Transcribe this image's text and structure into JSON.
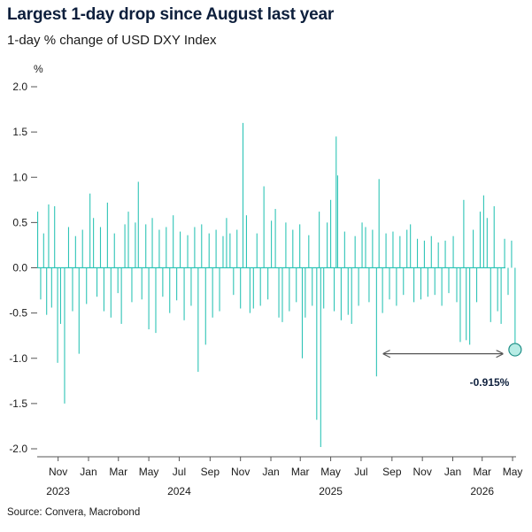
{
  "title": "Largest 1-day drop since August last year",
  "subtitle": "1-day % change of USD DXY Index",
  "source": "Source: Convera, Macrobond",
  "chart_data": {
    "type": "bar",
    "title": "Largest 1-day drop since August last year",
    "subtitle": "1-day % change of USD DXY Index",
    "ylabel": "%",
    "ylim": [
      -2.1,
      2.1
    ],
    "y_ticks": [
      2.0,
      1.5,
      1.0,
      0.5,
      0.0,
      -0.5,
      -1.0,
      -1.5,
      -2.0
    ],
    "y_tick_labels": [
      "2.0",
      "1.5",
      "1.0",
      "0.5",
      "0.0",
      "-0.5",
      "-1.0",
      "-1.5",
      "-2.0"
    ],
    "x_range": [
      "2023-09-20",
      "2026-05-08"
    ],
    "x_month_ticks": [
      {
        "label": "Nov",
        "date": "2023-11-01"
      },
      {
        "label": "Jan",
        "date": "2024-01-01"
      },
      {
        "label": "Mar",
        "date": "2024-03-01"
      },
      {
        "label": "May",
        "date": "2024-05-01"
      },
      {
        "label": "Jul",
        "date": "2024-07-01"
      },
      {
        "label": "Sep",
        "date": "2024-09-01"
      },
      {
        "label": "Nov",
        "date": "2024-11-01"
      },
      {
        "label": "Jan",
        "date": "2025-01-01"
      },
      {
        "label": "Mar",
        "date": "2025-03-01"
      },
      {
        "label": "May",
        "date": "2025-05-01"
      },
      {
        "label": "Jul",
        "date": "2025-07-01"
      },
      {
        "label": "Sep",
        "date": "2025-09-01"
      },
      {
        "label": "Nov",
        "date": "2025-11-01"
      },
      {
        "label": "Jan",
        "date": "2026-01-01"
      },
      {
        "label": "Mar",
        "date": "2026-03-01"
      },
      {
        "label": "May",
        "date": "2026-05-01"
      }
    ],
    "x_year_labels": [
      {
        "label": "2023",
        "date": "2023-11-01"
      },
      {
        "label": "2024",
        "date": "2024-07-01"
      },
      {
        "label": "2025",
        "date": "2025-05-01"
      },
      {
        "label": "2026",
        "date": "2026-03-01"
      }
    ],
    "series": [
      {
        "color": "#2ec4b6",
        "points": [
          {
            "x": "2023-09-21",
            "y": 0.62
          },
          {
            "x": "2023-09-27",
            "y": -0.35
          },
          {
            "x": "2023-10-03",
            "y": 0.38
          },
          {
            "x": "2023-10-09",
            "y": -0.52
          },
          {
            "x": "2023-10-13",
            "y": 0.7
          },
          {
            "x": "2023-10-19",
            "y": -0.44
          },
          {
            "x": "2023-10-25",
            "y": 0.68
          },
          {
            "x": "2023-10-31",
            "y": -1.05
          },
          {
            "x": "2023-11-06",
            "y": -0.62
          },
          {
            "x": "2023-11-14",
            "y": -1.5
          },
          {
            "x": "2023-11-22",
            "y": 0.45
          },
          {
            "x": "2023-11-30",
            "y": -0.48
          },
          {
            "x": "2023-12-06",
            "y": 0.35
          },
          {
            "x": "2023-12-13",
            "y": -0.95
          },
          {
            "x": "2023-12-20",
            "y": 0.42
          },
          {
            "x": "2023-12-28",
            "y": -0.4
          },
          {
            "x": "2024-01-04",
            "y": 0.82
          },
          {
            "x": "2024-01-11",
            "y": 0.55
          },
          {
            "x": "2024-01-18",
            "y": -0.32
          },
          {
            "x": "2024-01-25",
            "y": 0.45
          },
          {
            "x": "2024-02-01",
            "y": -0.48
          },
          {
            "x": "2024-02-08",
            "y": 0.72
          },
          {
            "x": "2024-02-15",
            "y": -0.55
          },
          {
            "x": "2024-02-22",
            "y": 0.38
          },
          {
            "x": "2024-02-29",
            "y": -0.28
          },
          {
            "x": "2024-03-07",
            "y": -0.62
          },
          {
            "x": "2024-03-14",
            "y": 0.48
          },
          {
            "x": "2024-03-21",
            "y": 0.62
          },
          {
            "x": "2024-03-28",
            "y": -0.38
          },
          {
            "x": "2024-04-04",
            "y": 0.5
          },
          {
            "x": "2024-04-10",
            "y": 0.95
          },
          {
            "x": "2024-04-17",
            "y": -0.35
          },
          {
            "x": "2024-04-25",
            "y": 0.48
          },
          {
            "x": "2024-05-01",
            "y": -0.68
          },
          {
            "x": "2024-05-08",
            "y": 0.55
          },
          {
            "x": "2024-05-15",
            "y": -0.72
          },
          {
            "x": "2024-05-22",
            "y": 0.42
          },
          {
            "x": "2024-05-29",
            "y": -0.32
          },
          {
            "x": "2024-06-05",
            "y": 0.45
          },
          {
            "x": "2024-06-12",
            "y": -0.5
          },
          {
            "x": "2024-06-19",
            "y": 0.58
          },
          {
            "x": "2024-06-26",
            "y": -0.36
          },
          {
            "x": "2024-07-03",
            "y": 0.4
          },
          {
            "x": "2024-07-11",
            "y": -0.58
          },
          {
            "x": "2024-07-18",
            "y": 0.36
          },
          {
            "x": "2024-07-25",
            "y": -0.42
          },
          {
            "x": "2024-08-01",
            "y": 0.45
          },
          {
            "x": "2024-08-08",
            "y": -1.15
          },
          {
            "x": "2024-08-15",
            "y": 0.48
          },
          {
            "x": "2024-08-23",
            "y": -0.85
          },
          {
            "x": "2024-08-30",
            "y": 0.38
          },
          {
            "x": "2024-09-06",
            "y": -0.55
          },
          {
            "x": "2024-09-13",
            "y": 0.42
          },
          {
            "x": "2024-09-20",
            "y": -0.48
          },
          {
            "x": "2024-09-27",
            "y": 0.35
          },
          {
            "x": "2024-10-04",
            "y": 0.55
          },
          {
            "x": "2024-10-11",
            "y": 0.38
          },
          {
            "x": "2024-10-18",
            "y": -0.3
          },
          {
            "x": "2024-10-25",
            "y": 0.42
          },
          {
            "x": "2024-11-01",
            "y": -0.45
          },
          {
            "x": "2024-11-06",
            "y": 1.6
          },
          {
            "x": "2024-11-13",
            "y": 0.58
          },
          {
            "x": "2024-11-20",
            "y": -0.5
          },
          {
            "x": "2024-11-27",
            "y": -0.45
          },
          {
            "x": "2024-12-04",
            "y": 0.38
          },
          {
            "x": "2024-12-11",
            "y": -0.42
          },
          {
            "x": "2024-12-18",
            "y": 0.9
          },
          {
            "x": "2024-12-26",
            "y": -0.35
          },
          {
            "x": "2025-01-02",
            "y": 0.52
          },
          {
            "x": "2025-01-10",
            "y": 0.65
          },
          {
            "x": "2025-01-17",
            "y": -0.55
          },
          {
            "x": "2025-01-24",
            "y": -0.6
          },
          {
            "x": "2025-01-31",
            "y": 0.5
          },
          {
            "x": "2025-02-07",
            "y": -0.48
          },
          {
            "x": "2025-02-14",
            "y": 0.42
          },
          {
            "x": "2025-02-21",
            "y": -0.38
          },
          {
            "x": "2025-02-28",
            "y": 0.48
          },
          {
            "x": "2025-03-05",
            "y": -1.0
          },
          {
            "x": "2025-03-11",
            "y": -0.55
          },
          {
            "x": "2025-03-18",
            "y": 0.36
          },
          {
            "x": "2025-03-25",
            "y": -0.42
          },
          {
            "x": "2025-04-03",
            "y": -1.68
          },
          {
            "x": "2025-04-08",
            "y": 0.62
          },
          {
            "x": "2025-04-11",
            "y": -1.98
          },
          {
            "x": "2025-04-17",
            "y": -0.45
          },
          {
            "x": "2025-04-24",
            "y": 0.5
          },
          {
            "x": "2025-05-01",
            "y": 0.75
          },
          {
            "x": "2025-05-08",
            "y": -0.48
          },
          {
            "x": "2025-05-12",
            "y": 1.45
          },
          {
            "x": "2025-05-15",
            "y": 1.02
          },
          {
            "x": "2025-05-22",
            "y": -0.58
          },
          {
            "x": "2025-05-29",
            "y": 0.4
          },
          {
            "x": "2025-06-05",
            "y": -0.52
          },
          {
            "x": "2025-06-12",
            "y": -0.62
          },
          {
            "x": "2025-06-19",
            "y": 0.35
          },
          {
            "x": "2025-06-26",
            "y": -0.42
          },
          {
            "x": "2025-07-03",
            "y": 0.5
          },
          {
            "x": "2025-07-10",
            "y": 0.45
          },
          {
            "x": "2025-07-17",
            "y": -0.38
          },
          {
            "x": "2025-07-24",
            "y": 0.42
          },
          {
            "x": "2025-08-01",
            "y": -1.2
          },
          {
            "x": "2025-08-06",
            "y": 0.98
          },
          {
            "x": "2025-08-13",
            "y": -0.5
          },
          {
            "x": "2025-08-20",
            "y": 0.38
          },
          {
            "x": "2025-08-27",
            "y": -0.35
          },
          {
            "x": "2025-09-03",
            "y": 0.4
          },
          {
            "x": "2025-09-10",
            "y": -0.42
          },
          {
            "x": "2025-09-17",
            "y": 0.35
          },
          {
            "x": "2025-09-24",
            "y": -0.3
          },
          {
            "x": "2025-10-01",
            "y": 0.42
          },
          {
            "x": "2025-10-08",
            "y": 0.48
          },
          {
            "x": "2025-10-15",
            "y": -0.38
          },
          {
            "x": "2025-10-22",
            "y": 0.32
          },
          {
            "x": "2025-10-29",
            "y": -0.35
          },
          {
            "x": "2025-11-05",
            "y": 0.3
          },
          {
            "x": "2025-11-12",
            "y": -0.32
          },
          {
            "x": "2025-11-19",
            "y": 0.35
          },
          {
            "x": "2025-11-26",
            "y": -0.3
          },
          {
            "x": "2025-12-03",
            "y": 0.28
          },
          {
            "x": "2025-12-10",
            "y": -0.42
          },
          {
            "x": "2025-12-17",
            "y": 0.3
          },
          {
            "x": "2025-12-24",
            "y": -0.28
          },
          {
            "x": "2026-01-02",
            "y": 0.35
          },
          {
            "x": "2026-01-09",
            "y": -0.38
          },
          {
            "x": "2026-01-16",
            "y": -0.82
          },
          {
            "x": "2026-01-23",
            "y": 0.75
          },
          {
            "x": "2026-01-28",
            "y": -0.8
          },
          {
            "x": "2026-02-04",
            "y": -0.85
          },
          {
            "x": "2026-02-11",
            "y": 0.42
          },
          {
            "x": "2026-02-18",
            "y": -0.38
          },
          {
            "x": "2026-02-25",
            "y": 0.62
          },
          {
            "x": "2026-03-04",
            "y": 0.8
          },
          {
            "x": "2026-03-11",
            "y": 0.55
          },
          {
            "x": "2026-03-18",
            "y": -0.6
          },
          {
            "x": "2026-03-25",
            "y": 0.68
          },
          {
            "x": "2026-04-01",
            "y": -0.48
          },
          {
            "x": "2026-04-08",
            "y": -0.62
          },
          {
            "x": "2026-04-15",
            "y": 0.32
          },
          {
            "x": "2026-04-22",
            "y": -0.3
          },
          {
            "x": "2026-04-29",
            "y": 0.3
          },
          {
            "x": "2026-05-06",
            "y": -0.915
          }
        ]
      }
    ],
    "annotations": [
      {
        "type": "arrow",
        "from": "2025-08-01",
        "to": "2026-05-06",
        "y": -0.95
      },
      {
        "type": "marker",
        "x": "2026-05-06",
        "y": -0.915
      },
      {
        "type": "label",
        "text": "-0.915%"
      }
    ]
  }
}
